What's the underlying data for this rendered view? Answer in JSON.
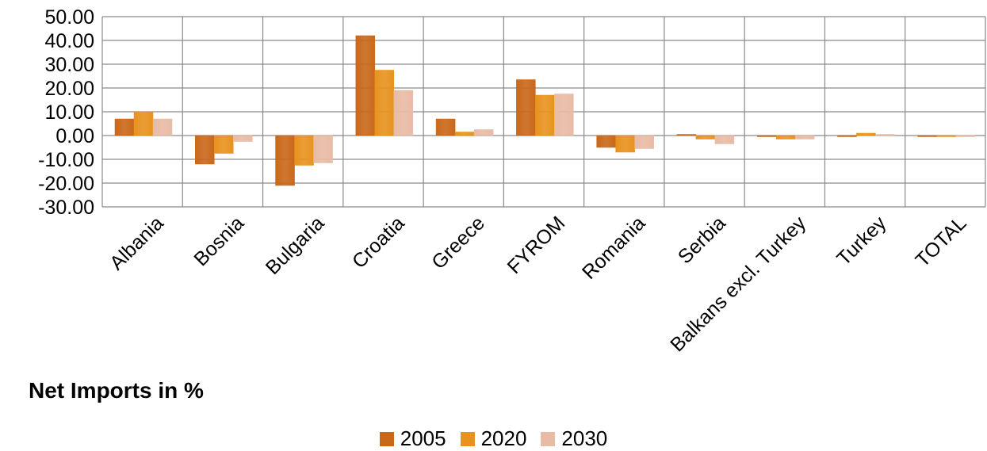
{
  "chart_data": {
    "type": "bar",
    "title": "Net Imports in %",
    "categories": [
      "Albania",
      "Bosnia",
      "Bulgaria",
      "Croatia",
      "Greece",
      "FYROM",
      "Romania",
      "Serbia",
      "Balkans excl. Turkey",
      "Turkey",
      "TOTAL"
    ],
    "series": [
      {
        "name": "2005",
        "color": "#c9681a",
        "values": [
          7,
          -12,
          -21,
          42,
          7,
          23.5,
          -5,
          0.5,
          -0.5,
          -0.5,
          -0.5
        ]
      },
      {
        "name": "2020",
        "color": "#e8921f",
        "values": [
          10,
          -7.5,
          -12.5,
          27.5,
          1.5,
          17,
          -7,
          -1.5,
          -1.5,
          1,
          -0.5
        ]
      },
      {
        "name": "2030",
        "color": "#e8bba5",
        "values": [
          7,
          -2.5,
          -11.5,
          19,
          2.5,
          17.5,
          -5.5,
          -3.5,
          -1.5,
          0.5,
          -0.5
        ]
      }
    ],
    "yticks": [
      "50.00",
      "40.00",
      "30.00",
      "20.00",
      "10.00",
      "0.00",
      "-10.00",
      "-20.00",
      "-30.00"
    ],
    "ylim": [
      -30,
      50
    ],
    "grid": true,
    "legend": "bottom"
  }
}
